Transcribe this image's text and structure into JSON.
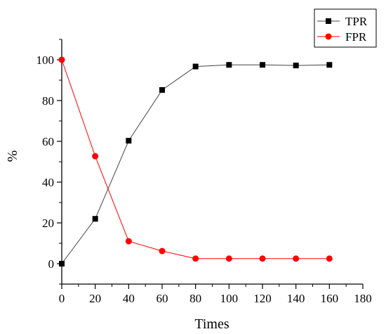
{
  "chart_data": {
    "type": "line",
    "title": "",
    "xlabel": "Times",
    "ylabel": "%",
    "xlim": [
      0,
      180
    ],
    "ylim": [
      -10,
      110
    ],
    "x_ticks": [
      0,
      20,
      40,
      60,
      80,
      100,
      120,
      140,
      160,
      180
    ],
    "y_ticks": [
      0,
      20,
      40,
      60,
      80,
      100
    ],
    "grid": false,
    "legend_position": "top-right",
    "x": [
      0,
      20,
      40,
      60,
      80,
      100,
      120,
      140,
      160
    ],
    "series": [
      {
        "name": "TPR",
        "values": [
          0,
          22,
          60.3,
          85.2,
          96.7,
          97.5,
          97.5,
          97.2,
          97.5
        ],
        "color": "#000000",
        "marker": "square"
      },
      {
        "name": "FPR",
        "values": [
          100,
          52.7,
          11,
          6.2,
          2.5,
          2.5,
          2.5,
          2.5,
          2.5
        ],
        "color": "#ff0000",
        "marker": "circle"
      }
    ]
  }
}
